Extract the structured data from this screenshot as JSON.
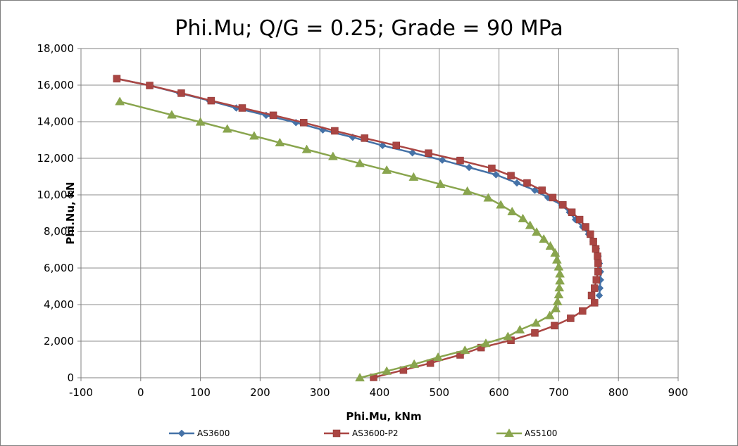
{
  "chart_data": {
    "type": "scatter",
    "title": "Phi.Mu; Q/G = 0.25; Grade = 90 MPa",
    "xlabel": "Phi.Mu, kNm",
    "ylabel": "Phi.Nu, kN",
    "xlim": [
      -100,
      900
    ],
    "ylim": [
      0,
      18000
    ],
    "x_ticks": [
      -100,
      0,
      100,
      200,
      300,
      400,
      500,
      600,
      700,
      800,
      900
    ],
    "y_ticks": [
      0,
      2000,
      4000,
      6000,
      8000,
      10000,
      12000,
      14000,
      16000,
      18000
    ],
    "x_tick_labels": [
      "-100",
      "0",
      "100",
      "200",
      "300",
      "400",
      "500",
      "600",
      "700",
      "800",
      "900"
    ],
    "y_tick_labels": [
      "0",
      "2,000",
      "4,000",
      "6,000",
      "8,000",
      "10,000",
      "12,000",
      "14,000",
      "16,000",
      "18,000"
    ],
    "grid": true,
    "legend_position": "bottom",
    "series": [
      {
        "name": "AS3600",
        "color": "#4572a7",
        "marker": "diamond",
        "points": [
          [
            -40,
            16350
          ],
          [
            15,
            15980
          ],
          [
            65,
            15560
          ],
          [
            115,
            15150
          ],
          [
            160,
            14750
          ],
          [
            210,
            14350
          ],
          [
            260,
            13950
          ],
          [
            305,
            13550
          ],
          [
            355,
            13150
          ],
          [
            405,
            12700
          ],
          [
            455,
            12300
          ],
          [
            505,
            11900
          ],
          [
            550,
            11500
          ],
          [
            595,
            11100
          ],
          [
            630,
            10650
          ],
          [
            660,
            10250
          ],
          [
            682,
            9850
          ],
          [
            705,
            9450
          ],
          [
            718,
            9050
          ],
          [
            728,
            8650
          ],
          [
            740,
            8250
          ],
          [
            750,
            7850
          ],
          [
            758,
            7450
          ],
          [
            763,
            7050
          ],
          [
            766,
            6650
          ],
          [
            768,
            6250
          ],
          [
            770,
            5800
          ],
          [
            770,
            5350
          ],
          [
            769,
            4900
          ],
          [
            768,
            4500
          ]
        ]
      },
      {
        "name": "AS3600-P2",
        "color": "#aa4643",
        "marker": "square",
        "points": [
          [
            -40,
            16350
          ],
          [
            15,
            15980
          ],
          [
            68,
            15560
          ],
          [
            118,
            15150
          ],
          [
            170,
            14750
          ],
          [
            222,
            14350
          ],
          [
            273,
            13950
          ],
          [
            325,
            13500
          ],
          [
            375,
            13100
          ],
          [
            428,
            12700
          ],
          [
            482,
            12280
          ],
          [
            535,
            11880
          ],
          [
            588,
            11450
          ],
          [
            620,
            11050
          ],
          [
            647,
            10650
          ],
          [
            672,
            10250
          ],
          [
            690,
            9850
          ],
          [
            707,
            9450
          ],
          [
            722,
            9050
          ],
          [
            735,
            8650
          ],
          [
            745,
            8250
          ],
          [
            753,
            7850
          ],
          [
            758,
            7450
          ],
          [
            762,
            7050
          ],
          [
            765,
            6650
          ],
          [
            766,
            6250
          ],
          [
            766,
            5800
          ],
          [
            763,
            5350
          ],
          [
            760,
            4900
          ],
          [
            755,
            4500
          ],
          [
            760,
            4100
          ],
          [
            740,
            3650
          ],
          [
            720,
            3250
          ],
          [
            693,
            2850
          ],
          [
            660,
            2450
          ],
          [
            620,
            2050
          ],
          [
            570,
            1650
          ],
          [
            535,
            1250
          ],
          [
            485,
            800
          ],
          [
            440,
            420
          ],
          [
            390,
            20
          ]
        ]
      },
      {
        "name": "AS5100",
        "color": "#89a54e",
        "marker": "triangle",
        "points": [
          [
            -35,
            15100
          ],
          [
            52,
            14370
          ],
          [
            100,
            13980
          ],
          [
            145,
            13600
          ],
          [
            190,
            13220
          ],
          [
            233,
            12850
          ],
          [
            278,
            12480
          ],
          [
            322,
            12100
          ],
          [
            367,
            11720
          ],
          [
            412,
            11350
          ],
          [
            457,
            10970
          ],
          [
            502,
            10580
          ],
          [
            547,
            10200
          ],
          [
            582,
            9830
          ],
          [
            603,
            9450
          ],
          [
            622,
            9080
          ],
          [
            640,
            8700
          ],
          [
            652,
            8330
          ],
          [
            663,
            7960
          ],
          [
            675,
            7580
          ],
          [
            686,
            7200
          ],
          [
            694,
            6820
          ],
          [
            697,
            6440
          ],
          [
            700,
            6060
          ],
          [
            702,
            5680
          ],
          [
            702,
            5300
          ],
          [
            701,
            4920
          ],
          [
            700,
            4540
          ],
          [
            698,
            4160
          ],
          [
            695,
            3780
          ],
          [
            685,
            3400
          ],
          [
            662,
            2990
          ],
          [
            635,
            2620
          ],
          [
            615,
            2250
          ],
          [
            578,
            1880
          ],
          [
            543,
            1500
          ],
          [
            498,
            1120
          ],
          [
            458,
            740
          ],
          [
            412,
            360
          ],
          [
            367,
            0
          ]
        ]
      }
    ]
  }
}
